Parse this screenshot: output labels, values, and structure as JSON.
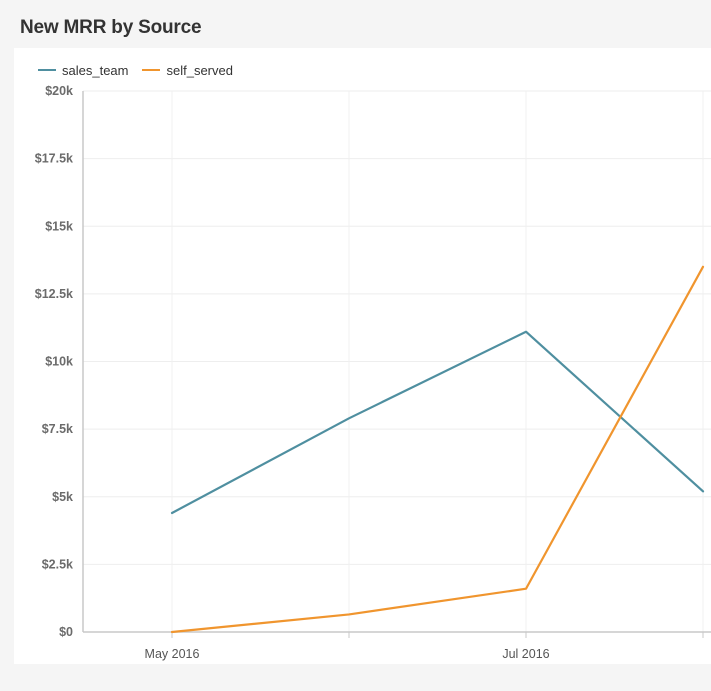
{
  "chart_data": {
    "type": "line",
    "title": "New MRR by Source",
    "xlabel": "",
    "ylabel": "",
    "ylim": [
      0,
      20000
    ],
    "y_ticks": [
      0,
      2500,
      5000,
      7500,
      10000,
      12500,
      15000,
      17500,
      20000
    ],
    "y_tick_labels": [
      "$0",
      "$2.5k",
      "$5k",
      "$7.5k",
      "$10k",
      "$12.5k",
      "$15k",
      "$17.5k",
      "$20k"
    ],
    "x": [
      "2016-05",
      "2016-06",
      "2016-07",
      "2016-08"
    ],
    "x_tick_labels": [
      "May 2016",
      "",
      "Jul 2016",
      ""
    ],
    "grid": true,
    "legend_position": "top-left",
    "series": [
      {
        "name": "sales_team",
        "color": "#4f8fa0",
        "values": [
          4400,
          7900,
          11100,
          5200
        ]
      },
      {
        "name": "self_served",
        "color": "#f0952e",
        "values": [
          0,
          650,
          1600,
          13500
        ]
      }
    ]
  }
}
